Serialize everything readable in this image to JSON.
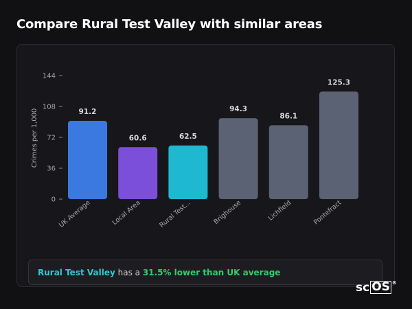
{
  "page": {
    "title": "Compare Rural Test Valley with similar areas"
  },
  "chart_data": {
    "type": "bar",
    "ylabel": "Crimes per 1,000",
    "xlabel": "",
    "ylim": [
      0,
      144
    ],
    "yticks": [
      0,
      36,
      72,
      108,
      144
    ],
    "grid": false,
    "categories": [
      "UK Average",
      "Local Area",
      "Rural Test...",
      "Brighouse",
      "Lichfield",
      "Pontefract"
    ],
    "values": [
      91.2,
      60.6,
      62.5,
      94.3,
      86.1,
      125.3
    ],
    "value_labels": [
      "91.2",
      "60.6",
      "62.5",
      "94.3",
      "86.1",
      "125.3"
    ],
    "colors": [
      "#3b78e0",
      "#7b4fd9",
      "#1fb8d1",
      "#5a6273",
      "#5a6273",
      "#5a6273"
    ]
  },
  "callout": {
    "area_name": "Rural Test Valley",
    "middle_text": " has a ",
    "stat_text": "31.5% lower than UK average"
  },
  "brand": {
    "prefix": "sc",
    "boxed": "OS",
    "mark": "®"
  }
}
